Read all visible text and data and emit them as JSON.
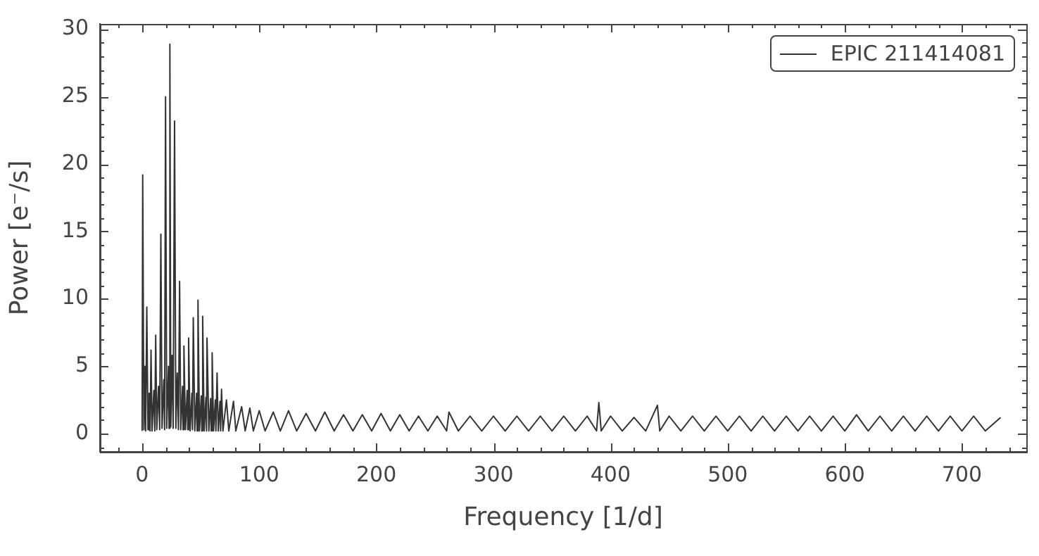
{
  "chart_data": {
    "type": "line",
    "xlabel": "Frequency [1/d]",
    "ylabel": "Power [e⁻/s]",
    "xlim": [
      -36,
      755
    ],
    "ylim": [
      -1.35,
      30.4
    ],
    "xticks": [
      {
        "value": -20,
        "label": null
      },
      0,
      {
        "value": 20,
        "label": null
      },
      {
        "value": 40,
        "label": null
      },
      {
        "value": 60,
        "label": null
      },
      {
        "value": 80,
        "label": null
      },
      100,
      {
        "value": 120,
        "label": null
      },
      {
        "value": 140,
        "label": null
      },
      {
        "value": 160,
        "label": null
      },
      {
        "value": 180,
        "label": null
      },
      200,
      {
        "value": 220,
        "label": null
      },
      {
        "value": 240,
        "label": null
      },
      {
        "value": 260,
        "label": null
      },
      {
        "value": 280,
        "label": null
      },
      300,
      {
        "value": 320,
        "label": null
      },
      {
        "value": 340,
        "label": null
      },
      {
        "value": 360,
        "label": null
      },
      {
        "value": 380,
        "label": null
      },
      400,
      {
        "value": 420,
        "label": null
      },
      {
        "value": 440,
        "label": null
      },
      {
        "value": 460,
        "label": null
      },
      {
        "value": 480,
        "label": null
      },
      500,
      {
        "value": 520,
        "label": null
      },
      {
        "value": 540,
        "label": null
      },
      {
        "value": 560,
        "label": null
      },
      {
        "value": 580,
        "label": null
      },
      600,
      {
        "value": 620,
        "label": null
      },
      {
        "value": 640,
        "label": null
      },
      {
        "value": 660,
        "label": null
      },
      {
        "value": 680,
        "label": null
      },
      700,
      {
        "value": 720,
        "label": null
      },
      {
        "value": 740,
        "label": null
      }
    ],
    "yticks": [
      {
        "value": -1,
        "label": null
      },
      0,
      {
        "value": 1,
        "label": null
      },
      {
        "value": 2,
        "label": null
      },
      {
        "value": 3,
        "label": null
      },
      {
        "value": 4,
        "label": null
      },
      5,
      {
        "value": 6,
        "label": null
      },
      {
        "value": 7,
        "label": null
      },
      {
        "value": 8,
        "label": null
      },
      {
        "value": 9,
        "label": null
      },
      10,
      {
        "value": 11,
        "label": null
      },
      {
        "value": 12,
        "label": null
      },
      {
        "value": 13,
        "label": null
      },
      {
        "value": 14,
        "label": null
      },
      15,
      {
        "value": 16,
        "label": null
      },
      {
        "value": 17,
        "label": null
      },
      {
        "value": 18,
        "label": null
      },
      {
        "value": 19,
        "label": null
      },
      20,
      {
        "value": 21,
        "label": null
      },
      {
        "value": 22,
        "label": null
      },
      {
        "value": 23,
        "label": null
      },
      {
        "value": 24,
        "label": null
      },
      25,
      {
        "value": 26,
        "label": null
      },
      {
        "value": 27,
        "label": null
      },
      {
        "value": 28,
        "label": null
      },
      {
        "value": 29,
        "label": null
      },
      30
    ],
    "legend": "top right",
    "marker": "none",
    "line_style": "solid",
    "grid": false,
    "series": [
      {
        "name": "EPIC 211414081",
        "color": "#333333",
        "x": [
          0,
          0.5,
          1.5,
          2.5,
          3,
          4,
          5,
          6,
          6.8,
          7.6,
          8.5,
          10,
          10.8,
          11.6,
          12.5,
          14,
          15,
          16,
          17,
          18.5,
          19.2,
          20,
          21,
          22.5,
          23,
          23.7,
          24.5,
          25.5,
          26.5,
          27.7,
          28.8,
          30,
          31,
          32,
          33,
          34.5,
          35,
          35.7,
          37,
          38.5,
          39,
          39.7,
          41,
          42.5,
          43,
          43.7,
          45,
          46.5,
          47,
          47.7,
          49,
          50.5,
          51,
          51.7,
          53,
          54.5,
          55,
          55.4,
          57,
          58.5,
          59,
          59.8,
          61,
          62.5,
          63,
          64,
          65,
          66.5,
          67,
          67.8,
          69,
          72,
          74,
          78,
          80,
          85,
          88,
          92,
          95,
          100,
          105,
          112,
          118,
          125,
          132,
          140,
          148,
          156,
          164,
          172,
          180,
          188,
          196,
          204,
          212,
          220,
          228,
          236,
          244,
          252,
          260,
          262,
          270,
          280,
          290,
          300,
          310,
          320,
          330,
          340,
          350,
          360,
          370,
          380,
          388,
          390,
          392,
          400,
          410,
          420,
          430,
          440,
          442,
          450,
          460,
          470,
          480,
          490,
          500,
          510,
          520,
          530,
          540,
          550,
          560,
          570,
          580,
          590,
          600,
          610,
          620,
          630,
          640,
          650,
          660,
          670,
          680,
          690,
          700,
          710,
          720,
          733
        ],
        "values": [
          0.2,
          19.2,
          0.3,
          5,
          0.2,
          9.4,
          0.3,
          3,
          0.2,
          6.2,
          0.2,
          3.2,
          0.2,
          7.3,
          0.3,
          3.5,
          0.3,
          14.8,
          0.4,
          4,
          0.3,
          25,
          0.4,
          5,
          0.4,
          28.9,
          0.5,
          5.8,
          0.4,
          23.2,
          0.4,
          4.5,
          0.3,
          11.3,
          0.3,
          3.5,
          0.3,
          6.5,
          0.3,
          3.2,
          0.3,
          7.1,
          0.2,
          3,
          0.3,
          8.6,
          0.2,
          3,
          0.2,
          9.9,
          0.2,
          2.8,
          0.2,
          8.7,
          0.2,
          2.7,
          0.2,
          7.1,
          0.2,
          2.6,
          0.2,
          6,
          0.2,
          2.5,
          0.2,
          4.5,
          0.2,
          2.4,
          0.2,
          3.3,
          0.2,
          2.5,
          0.2,
          2.4,
          0.2,
          2,
          0.2,
          1.9,
          0.2,
          1.7,
          0.2,
          1.6,
          0.2,
          1.7,
          0.2,
          1.5,
          0.2,
          1.6,
          0.2,
          1.4,
          0.2,
          1.4,
          0.2,
          1.5,
          0.2,
          1.4,
          0.2,
          1.3,
          0.2,
          1.3,
          0.2,
          1.6,
          0.2,
          1.3,
          0.2,
          1.3,
          0.2,
          1.3,
          0.2,
          1.3,
          0.2,
          1.3,
          0.2,
          1.3,
          0.2,
          2.3,
          0.2,
          1.3,
          0.2,
          1.2,
          0.2,
          2.1,
          0.2,
          1.3,
          0.2,
          1.3,
          0.2,
          1.3,
          0.2,
          1.3,
          0.2,
          1.3,
          0.2,
          1.3,
          0.2,
          1.3,
          0.2,
          1.3,
          0.2,
          1.4,
          0.2,
          1.3,
          0.2,
          1.3,
          0.2,
          1.3,
          0.2,
          1.3,
          0.2,
          1.3,
          0.2,
          1.2
        ]
      }
    ]
  }
}
